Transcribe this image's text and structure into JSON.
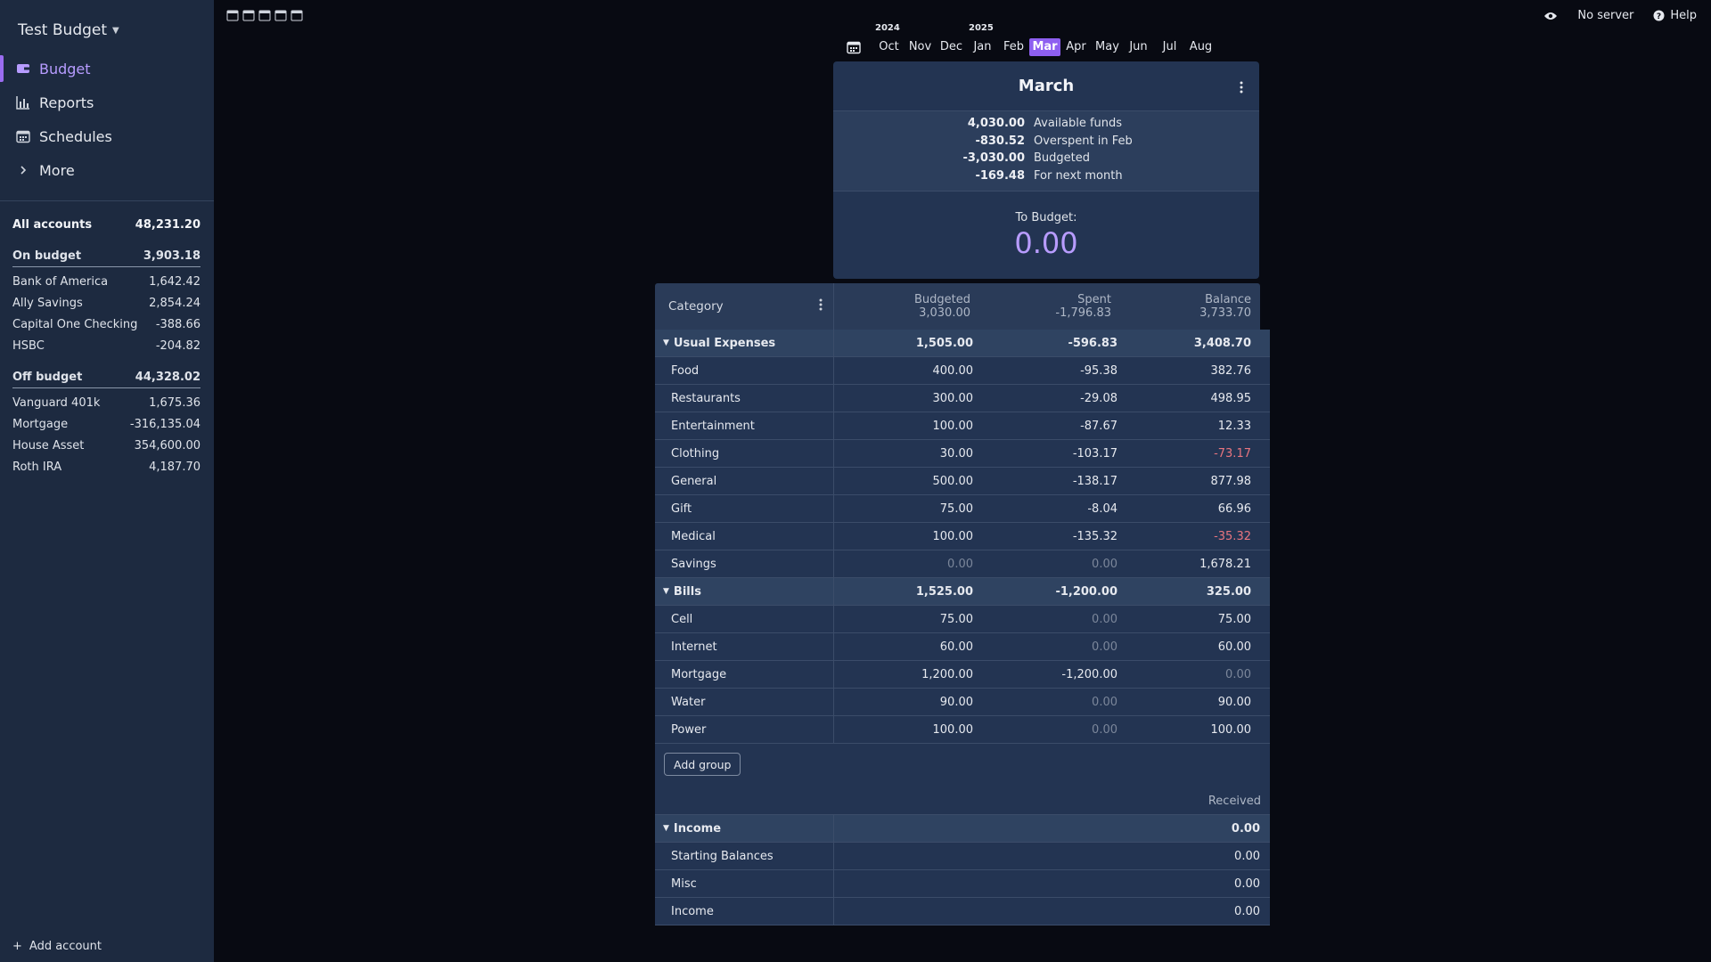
{
  "app": {
    "budget_name": "Test Budget"
  },
  "nav": [
    {
      "label": "Budget",
      "icon": "wallet-icon",
      "active": true
    },
    {
      "label": "Reports",
      "icon": "bar-chart-icon",
      "active": false
    },
    {
      "label": "Schedules",
      "icon": "calendar-icon",
      "active": false
    },
    {
      "label": "More",
      "icon": "chevron-right-icon",
      "active": false
    }
  ],
  "accounts": {
    "all": {
      "label": "All accounts",
      "value": "48,231.20"
    },
    "on_budget": {
      "label": "On budget",
      "value": "3,903.18"
    },
    "on_budget_items": [
      {
        "name": "Bank of America",
        "value": "1,642.42"
      },
      {
        "name": "Ally Savings",
        "value": "2,854.24"
      },
      {
        "name": "Capital One Checking",
        "value": "-388.66"
      },
      {
        "name": "HSBC",
        "value": "-204.82"
      }
    ],
    "off_budget": {
      "label": "Off budget",
      "value": "44,328.02"
    },
    "off_budget_items": [
      {
        "name": "Vanguard 401k",
        "value": "1,675.36"
      },
      {
        "name": "Mortgage",
        "value": "-316,135.04"
      },
      {
        "name": "House Asset",
        "value": "354,600.00"
      },
      {
        "name": "Roth IRA",
        "value": "4,187.70"
      }
    ],
    "add_label": "Add account"
  },
  "topbar": {
    "server_label": "No server",
    "help_label": "Help"
  },
  "month_picker": {
    "year_left": "2024",
    "year_right": "2025",
    "months": [
      "Oct",
      "Nov",
      "Dec",
      "Jan",
      "Feb",
      "Mar",
      "Apr",
      "May",
      "Jun",
      "Jul",
      "Aug"
    ],
    "active": "Mar"
  },
  "summary": {
    "month": "March",
    "lines": [
      {
        "value": "4,030.00",
        "label": "Available funds"
      },
      {
        "value": "-830.52",
        "label": "Overspent in Feb"
      },
      {
        "value": "-3,030.00",
        "label": "Budgeted"
      },
      {
        "value": "-169.48",
        "label": "For next month"
      }
    ],
    "to_budget_label": "To Budget:",
    "to_budget_value": "0.00"
  },
  "table": {
    "category_label": "Category",
    "budgeted_label": "Budgeted",
    "budgeted_total": "3,030.00",
    "spent_label": "Spent",
    "spent_total": "-1,796.83",
    "balance_label": "Balance",
    "balance_total": "3,733.70",
    "groups": [
      {
        "name": "Usual Expenses",
        "budgeted": "1,505.00",
        "spent": "-596.83",
        "balance": "3,408.70",
        "rows": [
          {
            "name": "Food",
            "budgeted": "400.00",
            "spent": "-95.38",
            "balance": "382.76"
          },
          {
            "name": "Restaurants",
            "budgeted": "300.00",
            "spent": "-29.08",
            "balance": "498.95"
          },
          {
            "name": "Entertainment",
            "budgeted": "100.00",
            "spent": "-87.67",
            "balance": "12.33"
          },
          {
            "name": "Clothing",
            "budgeted": "30.00",
            "spent": "-103.17",
            "balance": "-73.17"
          },
          {
            "name": "General",
            "budgeted": "500.00",
            "spent": "-138.17",
            "balance": "877.98"
          },
          {
            "name": "Gift",
            "budgeted": "75.00",
            "spent": "-8.04",
            "balance": "66.96"
          },
          {
            "name": "Medical",
            "budgeted": "100.00",
            "spent": "-135.32",
            "balance": "-35.32"
          },
          {
            "name": "Savings",
            "budgeted": "0.00",
            "spent": "0.00",
            "balance": "1,678.21"
          }
        ]
      },
      {
        "name": "Bills",
        "budgeted": "1,525.00",
        "spent": "-1,200.00",
        "balance": "325.00",
        "rows": [
          {
            "name": "Cell",
            "budgeted": "75.00",
            "spent": "0.00",
            "balance": "75.00"
          },
          {
            "name": "Internet",
            "budgeted": "60.00",
            "spent": "0.00",
            "balance": "60.00"
          },
          {
            "name": "Mortgage",
            "budgeted": "1,200.00",
            "spent": "-1,200.00",
            "balance": "0.00"
          },
          {
            "name": "Water",
            "budgeted": "90.00",
            "spent": "0.00",
            "balance": "90.00"
          },
          {
            "name": "Power",
            "budgeted": "100.00",
            "spent": "0.00",
            "balance": "100.00"
          }
        ]
      }
    ],
    "add_group_label": "Add group",
    "received_label": "Received",
    "income_group": {
      "name": "Income",
      "received": "0.00",
      "rows": [
        {
          "name": "Starting Balances",
          "received": "0.00"
        },
        {
          "name": "Misc",
          "received": "0.00"
        },
        {
          "name": "Income",
          "received": "0.00"
        }
      ]
    }
  },
  "colors": {
    "accent": "#8e5ff0",
    "to_budget": "#b89cff",
    "negative": "#e8757f",
    "sidebar": "#1d2a40"
  }
}
